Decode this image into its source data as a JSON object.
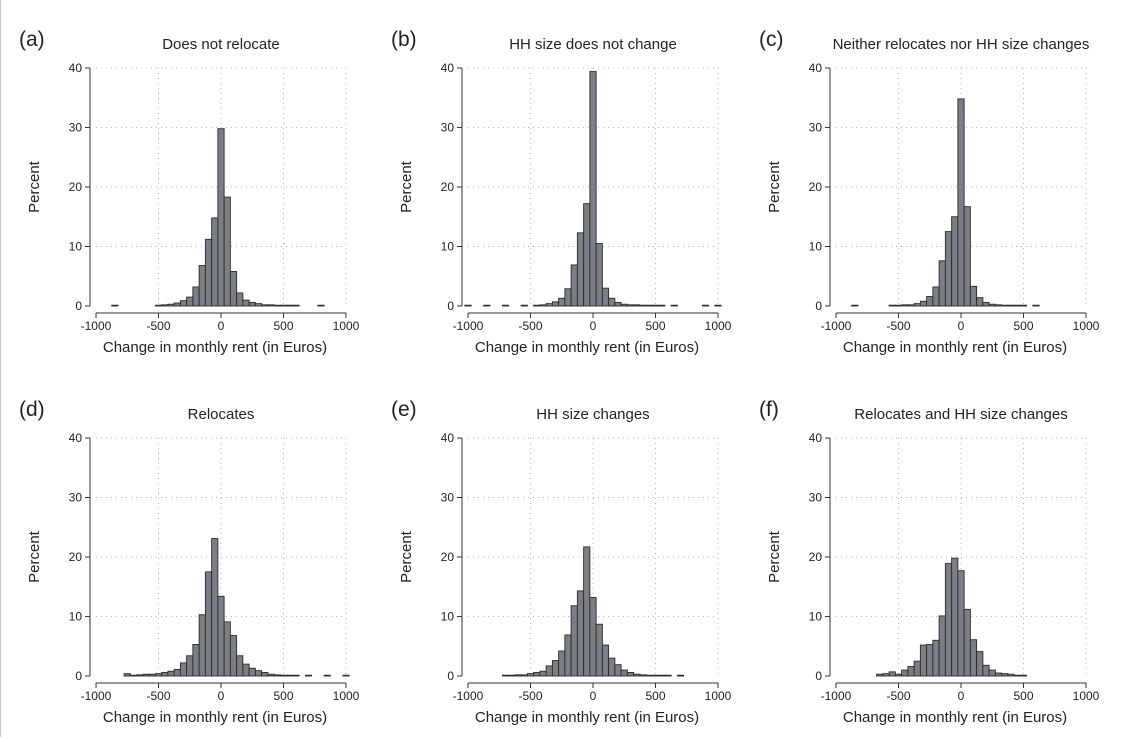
{
  "figure": {
    "bar_fill": "#7b7e84",
    "bar_stroke": "#2b2b2b",
    "grid_color": "#b0b0b0"
  },
  "chart_data": [
    {
      "type": "bar",
      "panel_label": "(a)",
      "title": "Does not relocate",
      "xlabel": "Change in monthly rent (in Euros)",
      "ylabel": "Percent",
      "xlim": [
        -1000,
        1000
      ],
      "ylim": [
        0,
        40
      ],
      "xticks": [
        -1000,
        -500,
        0,
        500,
        1000
      ],
      "yticks": [
        0,
        10,
        20,
        30,
        40
      ],
      "grid": true,
      "bin_width": 50,
      "bins": [
        {
          "x": -850,
          "y": 0.1
        },
        {
          "x": -500,
          "y": 0.1
        },
        {
          "x": -450,
          "y": 0.2
        },
        {
          "x": -400,
          "y": 0.3
        },
        {
          "x": -350,
          "y": 0.5
        },
        {
          "x": -300,
          "y": 0.9
        },
        {
          "x": -250,
          "y": 1.5
        },
        {
          "x": -200,
          "y": 3.2
        },
        {
          "x": -150,
          "y": 6.8
        },
        {
          "x": -100,
          "y": 11.2
        },
        {
          "x": -50,
          "y": 14.8
        },
        {
          "x": 0,
          "y": 29.8
        },
        {
          "x": 50,
          "y": 18.3
        },
        {
          "x": 100,
          "y": 5.8
        },
        {
          "x": 150,
          "y": 2.2
        },
        {
          "x": 200,
          "y": 1.0
        },
        {
          "x": 250,
          "y": 0.6
        },
        {
          "x": 300,
          "y": 0.4
        },
        {
          "x": 350,
          "y": 0.2
        },
        {
          "x": 400,
          "y": 0.2
        },
        {
          "x": 450,
          "y": 0.1
        },
        {
          "x": 500,
          "y": 0.1
        },
        {
          "x": 550,
          "y": 0.1
        },
        {
          "x": 600,
          "y": 0.1
        },
        {
          "x": 800,
          "y": 0.1
        }
      ]
    },
    {
      "type": "bar",
      "panel_label": "(b)",
      "title": "HH size does not change",
      "xlabel": "Change in monthly rent (in Euros)",
      "ylabel": "Percent",
      "xlim": [
        -1000,
        1000
      ],
      "ylim": [
        0,
        40
      ],
      "xticks": [
        -1000,
        -500,
        0,
        500,
        1000
      ],
      "yticks": [
        0,
        10,
        20,
        30,
        40
      ],
      "grid": true,
      "bin_width": 50,
      "bins": [
        {
          "x": -1000,
          "y": 0.1
        },
        {
          "x": -850,
          "y": 0.1
        },
        {
          "x": -700,
          "y": 0.1
        },
        {
          "x": -550,
          "y": 0.1
        },
        {
          "x": -450,
          "y": 0.1
        },
        {
          "x": -400,
          "y": 0.2
        },
        {
          "x": -350,
          "y": 0.4
        },
        {
          "x": -300,
          "y": 0.7
        },
        {
          "x": -250,
          "y": 1.3
        },
        {
          "x": -200,
          "y": 2.9
        },
        {
          "x": -150,
          "y": 6.9
        },
        {
          "x": -100,
          "y": 12.3
        },
        {
          "x": -50,
          "y": 17.2
        },
        {
          "x": 0,
          "y": 39.4
        },
        {
          "x": 50,
          "y": 10.5
        },
        {
          "x": 100,
          "y": 3.0
        },
        {
          "x": 150,
          "y": 1.3
        },
        {
          "x": 200,
          "y": 0.6
        },
        {
          "x": 250,
          "y": 0.3
        },
        {
          "x": 300,
          "y": 0.2
        },
        {
          "x": 350,
          "y": 0.2
        },
        {
          "x": 400,
          "y": 0.1
        },
        {
          "x": 450,
          "y": 0.1
        },
        {
          "x": 500,
          "y": 0.1
        },
        {
          "x": 550,
          "y": 0.1
        },
        {
          "x": 650,
          "y": 0.1
        },
        {
          "x": 900,
          "y": 0.1
        },
        {
          "x": 1000,
          "y": 0.1
        }
      ]
    },
    {
      "type": "bar",
      "panel_label": "(c)",
      "title": "Neither relocates nor HH size changes",
      "xlabel": "Change in monthly rent (in Euros)",
      "ylabel": "Percent",
      "xlim": [
        -1000,
        1000
      ],
      "ylim": [
        0,
        40
      ],
      "xticks": [
        -1000,
        -500,
        0,
        500,
        1000
      ],
      "yticks": [
        0,
        10,
        20,
        30,
        40
      ],
      "grid": true,
      "bin_width": 50,
      "bins": [
        {
          "x": -850,
          "y": 0.1
        },
        {
          "x": -550,
          "y": 0.1
        },
        {
          "x": -500,
          "y": 0.1
        },
        {
          "x": -450,
          "y": 0.2
        },
        {
          "x": -400,
          "y": 0.2
        },
        {
          "x": -350,
          "y": 0.4
        },
        {
          "x": -300,
          "y": 0.8
        },
        {
          "x": -250,
          "y": 1.6
        },
        {
          "x": -200,
          "y": 3.2
        },
        {
          "x": -150,
          "y": 7.6
        },
        {
          "x": -100,
          "y": 12.5
        },
        {
          "x": -50,
          "y": 15.0
        },
        {
          "x": 0,
          "y": 34.8
        },
        {
          "x": 50,
          "y": 16.7
        },
        {
          "x": 100,
          "y": 3.3
        },
        {
          "x": 150,
          "y": 1.4
        },
        {
          "x": 200,
          "y": 0.6
        },
        {
          "x": 250,
          "y": 0.3
        },
        {
          "x": 300,
          "y": 0.2
        },
        {
          "x": 350,
          "y": 0.1
        },
        {
          "x": 400,
          "y": 0.1
        },
        {
          "x": 450,
          "y": 0.1
        },
        {
          "x": 500,
          "y": 0.1
        },
        {
          "x": 600,
          "y": 0.1
        }
      ]
    },
    {
      "type": "bar",
      "panel_label": "(d)",
      "title": "Relocates",
      "xlabel": "Change in monthly rent (in Euros)",
      "ylabel": "Percent",
      "xlim": [
        -1000,
        1000
      ],
      "ylim": [
        0,
        40
      ],
      "xticks": [
        -1000,
        -500,
        0,
        500,
        1000
      ],
      "yticks": [
        0,
        10,
        20,
        30,
        40
      ],
      "grid": true,
      "bin_width": 50,
      "bins": [
        {
          "x": -750,
          "y": 0.4
        },
        {
          "x": -700,
          "y": 0.1
        },
        {
          "x": -650,
          "y": 0.2
        },
        {
          "x": -600,
          "y": 0.3
        },
        {
          "x": -550,
          "y": 0.3
        },
        {
          "x": -500,
          "y": 0.4
        },
        {
          "x": -450,
          "y": 0.6
        },
        {
          "x": -400,
          "y": 0.8
        },
        {
          "x": -350,
          "y": 1.1
        },
        {
          "x": -300,
          "y": 2.2
        },
        {
          "x": -250,
          "y": 3.4
        },
        {
          "x": -200,
          "y": 5.3
        },
        {
          "x": -150,
          "y": 10.3
        },
        {
          "x": -100,
          "y": 17.5
        },
        {
          "x": -50,
          "y": 23.1
        },
        {
          "x": 0,
          "y": 13.4
        },
        {
          "x": 50,
          "y": 9.1
        },
        {
          "x": 100,
          "y": 6.8
        },
        {
          "x": 150,
          "y": 3.4
        },
        {
          "x": 200,
          "y": 2.0
        },
        {
          "x": 250,
          "y": 1.3
        },
        {
          "x": 300,
          "y": 0.9
        },
        {
          "x": 350,
          "y": 0.6
        },
        {
          "x": 400,
          "y": 0.3
        },
        {
          "x": 450,
          "y": 0.2
        },
        {
          "x": 500,
          "y": 0.1
        },
        {
          "x": 550,
          "y": 0.1
        },
        {
          "x": 600,
          "y": 0.1
        },
        {
          "x": 700,
          "y": 0.1
        },
        {
          "x": 850,
          "y": 0.1
        },
        {
          "x": 1000,
          "y": 0.1
        }
      ]
    },
    {
      "type": "bar",
      "panel_label": "(e)",
      "title": "HH size changes",
      "xlabel": "Change in monthly rent (in Euros)",
      "ylabel": "Percent",
      "xlim": [
        -1000,
        1000
      ],
      "ylim": [
        0,
        40
      ],
      "xticks": [
        -1000,
        -500,
        0,
        500,
        1000
      ],
      "yticks": [
        0,
        10,
        20,
        30,
        40
      ],
      "grid": true,
      "bin_width": 50,
      "bins": [
        {
          "x": -700,
          "y": 0.1
        },
        {
          "x": -650,
          "y": 0.1
        },
        {
          "x": -600,
          "y": 0.2
        },
        {
          "x": -550,
          "y": 0.2
        },
        {
          "x": -500,
          "y": 0.4
        },
        {
          "x": -450,
          "y": 0.6
        },
        {
          "x": -400,
          "y": 0.8
        },
        {
          "x": -350,
          "y": 1.7
        },
        {
          "x": -300,
          "y": 2.6
        },
        {
          "x": -250,
          "y": 4.2
        },
        {
          "x": -200,
          "y": 6.9
        },
        {
          "x": -150,
          "y": 11.8
        },
        {
          "x": -100,
          "y": 14.3
        },
        {
          "x": -50,
          "y": 21.7
        },
        {
          "x": 0,
          "y": 13.2
        },
        {
          "x": 50,
          "y": 8.7
        },
        {
          "x": 100,
          "y": 5.2
        },
        {
          "x": 150,
          "y": 3.0
        },
        {
          "x": 200,
          "y": 1.9
        },
        {
          "x": 250,
          "y": 1.0
        },
        {
          "x": 300,
          "y": 0.6
        },
        {
          "x": 350,
          "y": 0.3
        },
        {
          "x": 400,
          "y": 0.2
        },
        {
          "x": 450,
          "y": 0.1
        },
        {
          "x": 500,
          "y": 0.1
        },
        {
          "x": 550,
          "y": 0.1
        },
        {
          "x": 600,
          "y": 0.1
        },
        {
          "x": 700,
          "y": 0.1
        }
      ]
    },
    {
      "type": "bar",
      "panel_label": "(f)",
      "title": "Relocates and HH size changes",
      "xlabel": "Change in monthly rent (in Euros)",
      "ylabel": "Percent",
      "xlim": [
        -1000,
        1000
      ],
      "ylim": [
        0,
        40
      ],
      "xticks": [
        -1000,
        -500,
        0,
        500,
        1000
      ],
      "yticks": [
        0,
        10,
        20,
        30,
        40
      ],
      "grid": true,
      "bin_width": 50,
      "bins": [
        {
          "x": -650,
          "y": 0.3
        },
        {
          "x": -600,
          "y": 0.4
        },
        {
          "x": -550,
          "y": 0.7
        },
        {
          "x": -500,
          "y": 0.3
        },
        {
          "x": -450,
          "y": 1.0
        },
        {
          "x": -400,
          "y": 1.6
        },
        {
          "x": -350,
          "y": 2.5
        },
        {
          "x": -300,
          "y": 5.2
        },
        {
          "x": -250,
          "y": 5.3
        },
        {
          "x": -200,
          "y": 6.0
        },
        {
          "x": -150,
          "y": 10.1
        },
        {
          "x": -100,
          "y": 18.9
        },
        {
          "x": -50,
          "y": 19.8
        },
        {
          "x": 0,
          "y": 17.7
        },
        {
          "x": 50,
          "y": 11.2
        },
        {
          "x": 100,
          "y": 6.1
        },
        {
          "x": 150,
          "y": 4.1
        },
        {
          "x": 200,
          "y": 1.8
        },
        {
          "x": 250,
          "y": 1.0
        },
        {
          "x": 300,
          "y": 0.5
        },
        {
          "x": 350,
          "y": 0.4
        },
        {
          "x": 400,
          "y": 0.3
        },
        {
          "x": 450,
          "y": 0.1
        },
        {
          "x": 500,
          "y": 0.1
        }
      ]
    }
  ]
}
